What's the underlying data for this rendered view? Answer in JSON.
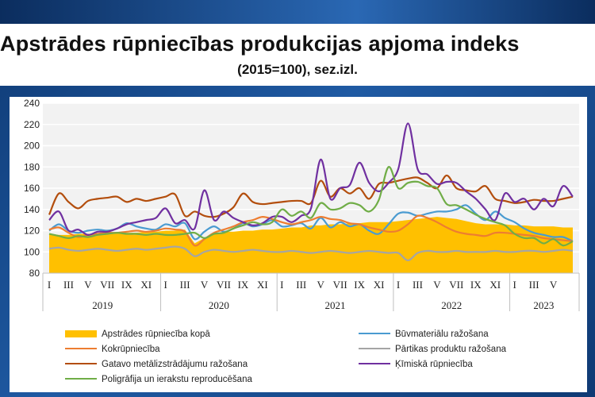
{
  "header": {
    "title": "Apstrādes rūpniecības produkcijas apjoma indeks",
    "subtitle": "(2015=100), sez.izl."
  },
  "chart_data": {
    "type": "line",
    "title": "Apstrādes rūpniecības produkcijas apjoma indeks",
    "subtitle": "(2015=100), sez.izl.",
    "xlabel": "",
    "ylabel": "",
    "ylim": [
      80,
      240
    ],
    "yticks": [
      80,
      100,
      120,
      140,
      160,
      180,
      200,
      220,
      240
    ],
    "grid": true,
    "legend_position": "bottom",
    "month_labels": [
      "I",
      "III",
      "V",
      "VII",
      "IX",
      "XI",
      "I",
      "III",
      "V",
      "VII",
      "IX",
      "XI",
      "I",
      "III",
      "V",
      "VII",
      "IX",
      "XI",
      "I",
      "III",
      "V",
      "VII",
      "IX",
      "XI",
      "I",
      "III",
      "V"
    ],
    "years": [
      "2019",
      "2020",
      "2021",
      "2022",
      "2023"
    ],
    "series": [
      {
        "name": "Apstrādes rūpniecība kopā",
        "type": "area",
        "color": "#ffc000",
        "values": [
          117,
          116,
          116,
          117,
          117,
          117,
          118,
          118,
          118,
          118,
          119,
          119,
          120,
          120,
          121,
          108,
          113,
          117,
          119,
          119,
          120,
          120,
          121,
          121,
          122,
          123,
          123,
          125,
          125,
          126,
          126,
          127,
          127,
          128,
          128,
          128,
          129,
          130,
          131,
          132,
          133,
          132,
          131,
          129,
          127,
          126,
          126,
          126,
          125,
          125,
          124,
          124,
          124,
          123,
          123
        ]
      },
      {
        "name": "Būvmateriālu ražošana",
        "color": "#4a9bd1",
        "values": [
          120,
          126,
          120,
          118,
          120,
          121,
          120,
          122,
          127,
          124,
          122,
          121,
          126,
          124,
          127,
          112,
          119,
          124,
          119,
          122,
          127,
          124,
          126,
          130,
          124,
          125,
          127,
          122,
          132,
          123,
          128,
          124,
          126,
          120,
          117,
          126,
          136,
          137,
          134,
          136,
          138,
          138,
          140,
          144,
          136,
          130,
          138,
          132,
          128,
          122,
          118,
          116,
          114,
          114,
          110
        ]
      },
      {
        "name": "Kokrūpniecība",
        "color": "#ed7d31",
        "values": [
          121,
          123,
          118,
          114,
          116,
          117,
          118,
          118,
          119,
          120,
          119,
          120,
          122,
          121,
          119,
          106,
          112,
          118,
          121,
          124,
          128,
          130,
          133,
          131,
          128,
          126,
          128,
          130,
          133,
          131,
          130,
          127,
          126,
          123,
          121,
          119,
          120,
          126,
          134,
          132,
          128,
          123,
          119,
          117,
          116,
          115,
          118,
          118,
          117,
          116,
          115,
          113,
          112,
          111,
          110
        ]
      },
      {
        "name": "Pārtikas produktu ražošana",
        "color": "#a5a5a5",
        "values": [
          103,
          104,
          102,
          101,
          102,
          103,
          102,
          101,
          102,
          103,
          102,
          103,
          104,
          105,
          103,
          96,
          100,
          102,
          101,
          100,
          101,
          102,
          101,
          100,
          100,
          101,
          100,
          99,
          100,
          101,
          100,
          99,
          100,
          101,
          100,
          99,
          99,
          92,
          99,
          101,
          100,
          100,
          101,
          100,
          100,
          100,
          101,
          100,
          100,
          101,
          101,
          100,
          101,
          102,
          101
        ]
      },
      {
        "name": "Gatavo metālizstrādājumu ražošana",
        "color": "#b34e0d",
        "values": [
          135,
          155,
          147,
          141,
          148,
          150,
          151,
          152,
          147,
          150,
          148,
          150,
          152,
          154,
          134,
          138,
          134,
          133,
          136,
          142,
          155,
          147,
          145,
          146,
          147,
          148,
          148,
          146,
          167,
          152,
          160,
          155,
          160,
          150,
          164,
          165,
          167,
          169,
          170,
          165,
          160,
          172,
          160,
          158,
          157,
          162,
          150,
          148,
          146,
          147,
          149,
          148,
          148,
          150,
          152
        ]
      },
      {
        "name": "Ķīmiskā rūpniecība",
        "color": "#7030a0",
        "values": [
          130,
          138,
          120,
          121,
          116,
          119,
          119,
          122,
          126,
          128,
          130,
          132,
          141,
          127,
          130,
          122,
          158,
          130,
          138,
          132,
          128,
          125,
          127,
          133,
          133,
          128,
          134,
          141,
          187,
          150,
          160,
          163,
          184,
          165,
          157,
          165,
          178,
          221,
          178,
          173,
          164,
          166,
          165,
          157,
          150,
          140,
          130,
          155,
          147,
          150,
          140,
          150,
          143,
          162,
          152
        ]
      },
      {
        "name": "Poligrāfija un ierakstu reproducēšana",
        "color": "#70ad47",
        "values": [
          117,
          115,
          113,
          115,
          114,
          116,
          117,
          118,
          117,
          117,
          116,
          117,
          116,
          116,
          117,
          118,
          113,
          117,
          118,
          122,
          125,
          128,
          126,
          128,
          140,
          134,
          138,
          132,
          146,
          140,
          141,
          146,
          144,
          138,
          149,
          180,
          160,
          165,
          166,
          162,
          160,
          145,
          144,
          140,
          135,
          131,
          128,
          125,
          117,
          113,
          113,
          108,
          112,
          106,
          110
        ]
      }
    ]
  }
}
